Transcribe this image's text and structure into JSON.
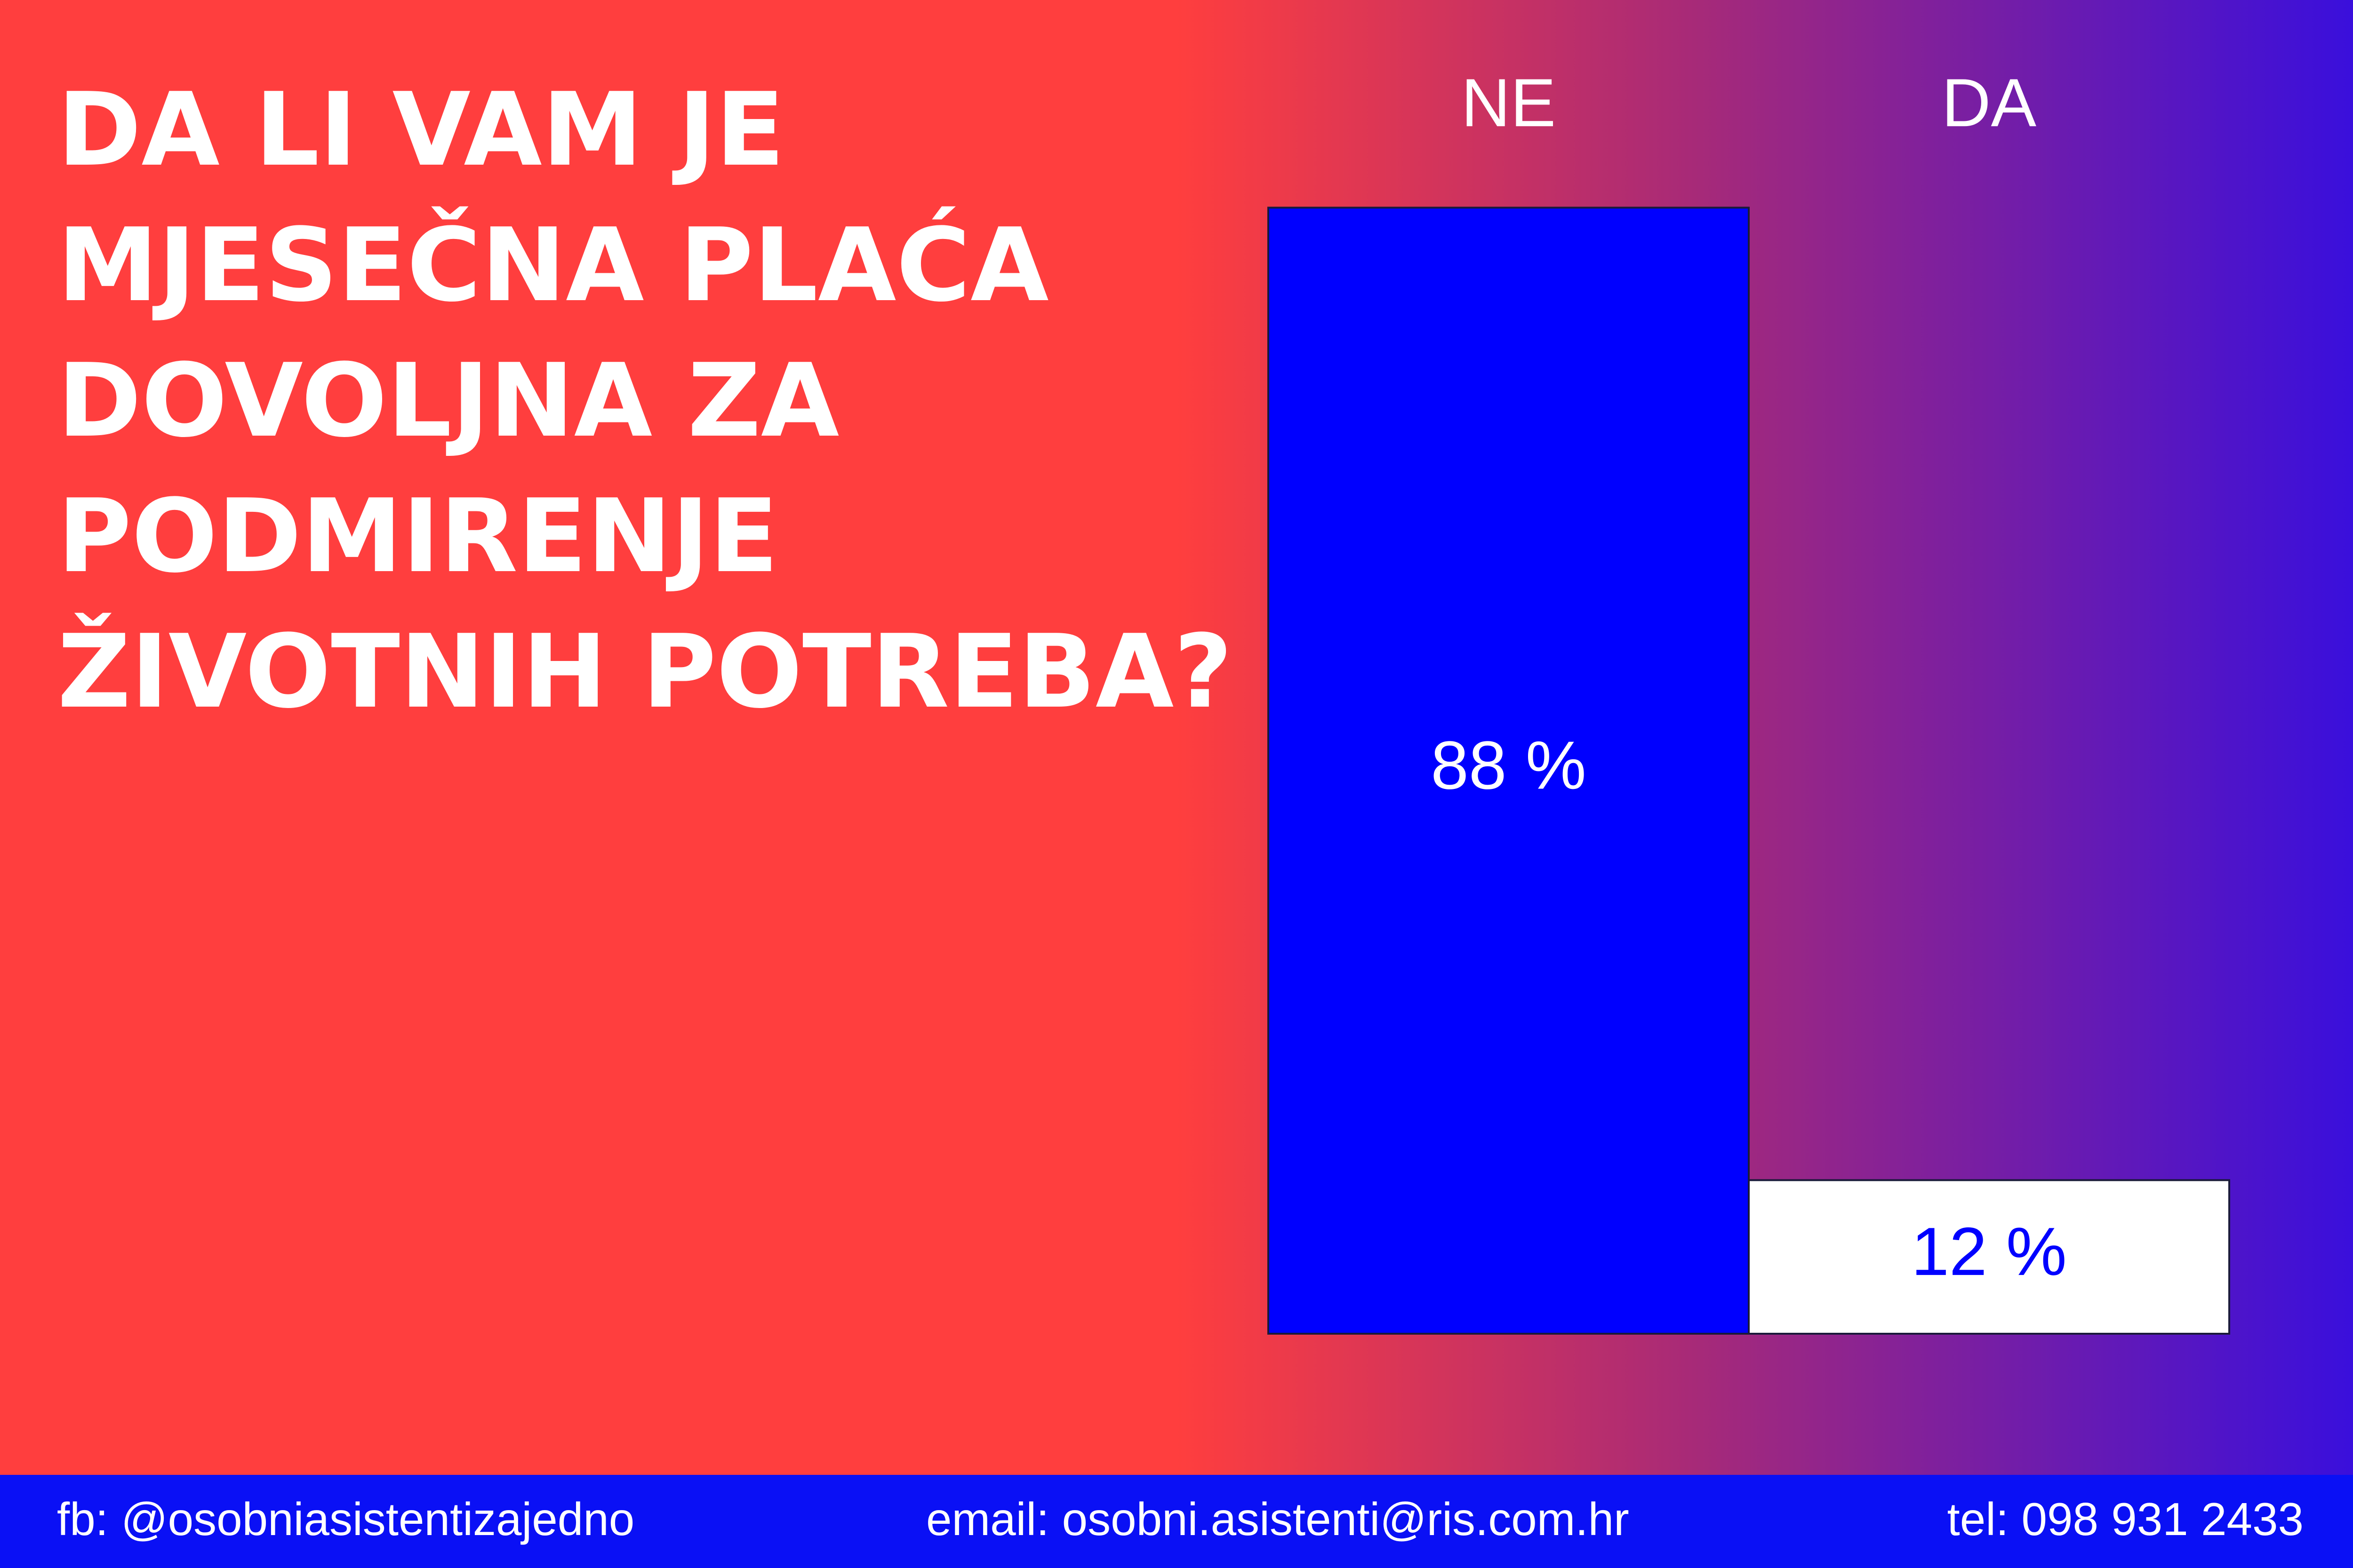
{
  "chart_data": {
    "type": "bar",
    "title": [
      "DA LI VAM JE",
      "MJESEČNA PLAĆA",
      "DOVOLJNA ZA",
      "PODMIRENJE",
      "ŽIVOTNIH POTREBA?"
    ],
    "categories": [
      "NE",
      "DA"
    ],
    "values": [
      88,
      12
    ],
    "value_labels": [
      "88 %",
      "12 %"
    ],
    "colors": [
      "#0000ff",
      "#ffffff"
    ],
    "label_colors": [
      "#ffffff",
      "#0000ff"
    ]
  },
  "footer": [
    "fb: @osobniasistentizajedno",
    "email: osobni.asistenti@ris.com.hr",
    "tel: 098 931 2433"
  ]
}
